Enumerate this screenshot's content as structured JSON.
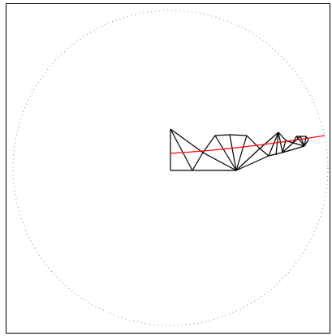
{
  "colors": {
    "background": "#ffffff",
    "frame": "#000000",
    "circle_boundary": "#888888",
    "mesh_edges": "#000000",
    "path_curve": "#ff0000"
  },
  "diagram": {
    "type": "triangulated mesh inside dotted circular boundary with red curve",
    "mesh_triangle_count": 16,
    "has_red_curve": true,
    "circle_style": "dotted"
  }
}
